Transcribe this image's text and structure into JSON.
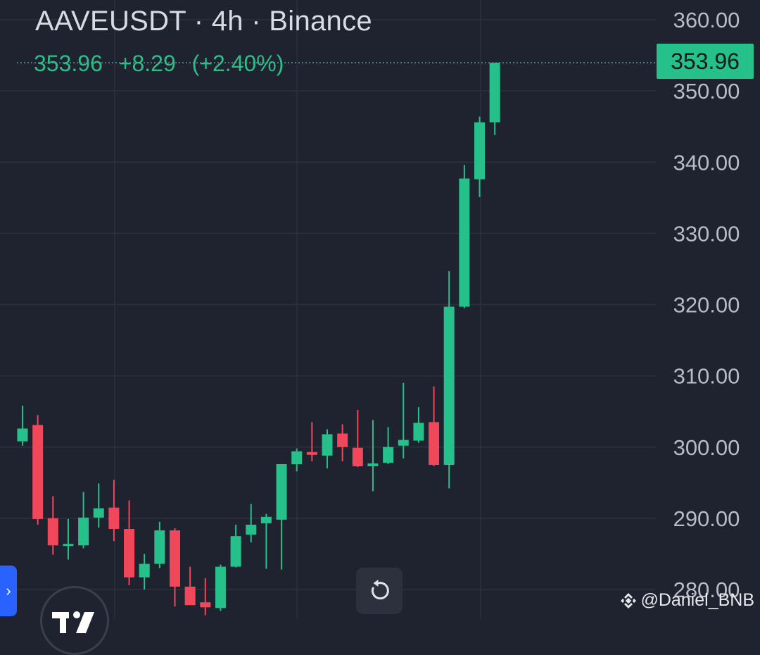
{
  "header": {
    "title": "AAVEUSDT · 4h · Binance",
    "last": "353.96",
    "change": "+8.29",
    "change_pct": "(+2.40%)"
  },
  "price_badge": "353.96",
  "watermark": "@Daniel_BNB",
  "colors": {
    "background": "#1f2330",
    "grid": "#2c313d",
    "up": "#26c08a",
    "down": "#f0475a",
    "axis_text": "#b8bcc6",
    "price_line": "#4aa6a0"
  },
  "icons": {
    "reset": "reset-icon",
    "expand": "chevron-right-icon",
    "watermark": "binance-icon"
  },
  "chart_data": {
    "type": "candlestick",
    "y_ticks": [
      "360.00",
      "350.00",
      "340.00",
      "330.00",
      "320.00",
      "310.00",
      "300.00",
      "290.00",
      "280.00"
    ],
    "ylim": [
      277.5,
      362.7
    ],
    "last_price": 353.96,
    "grid": true,
    "candles": [
      {
        "o": 300.8,
        "h": 305.8,
        "l": 300.2,
        "c": 302.6
      },
      {
        "o": 303.1,
        "h": 304.5,
        "l": 289.1,
        "c": 289.9
      },
      {
        "o": 290.0,
        "h": 293.1,
        "l": 284.9,
        "c": 286.2
      },
      {
        "o": 286.2,
        "h": 289.9,
        "l": 284.2,
        "c": 286.4
      },
      {
        "o": 286.2,
        "h": 293.7,
        "l": 285.8,
        "c": 290.1
      },
      {
        "o": 290.1,
        "h": 294.9,
        "l": 288.7,
        "c": 291.4
      },
      {
        "o": 291.5,
        "h": 295.4,
        "l": 286.8,
        "c": 288.5
      },
      {
        "o": 288.5,
        "h": 292.5,
        "l": 280.6,
        "c": 281.7
      },
      {
        "o": 281.7,
        "h": 285.0,
        "l": 280.0,
        "c": 283.6
      },
      {
        "o": 283.6,
        "h": 289.5,
        "l": 283.0,
        "c": 288.3
      },
      {
        "o": 288.3,
        "h": 288.6,
        "l": 277.6,
        "c": 280.4
      },
      {
        "o": 280.4,
        "h": 283.2,
        "l": 278.0,
        "c": 277.8
      },
      {
        "o": 278.2,
        "h": 281.6,
        "l": 276.4,
        "c": 277.5
      },
      {
        "o": 277.4,
        "h": 283.5,
        "l": 277.0,
        "c": 283.2
      },
      {
        "o": 283.2,
        "h": 289.1,
        "l": 283.1,
        "c": 287.5
      },
      {
        "o": 287.7,
        "h": 292.0,
        "l": 286.6,
        "c": 289.1
      },
      {
        "o": 289.3,
        "h": 290.6,
        "l": 282.9,
        "c": 290.2
      },
      {
        "o": 289.8,
        "h": 297.6,
        "l": 282.8,
        "c": 297.6
      },
      {
        "o": 297.6,
        "h": 299.8,
        "l": 296.6,
        "c": 299.4
      },
      {
        "o": 299.3,
        "h": 303.5,
        "l": 298.0,
        "c": 298.9
      },
      {
        "o": 298.8,
        "h": 302.5,
        "l": 297.0,
        "c": 301.8
      },
      {
        "o": 301.9,
        "h": 303.2,
        "l": 298.0,
        "c": 300.0
      },
      {
        "o": 299.9,
        "h": 305.2,
        "l": 297.2,
        "c": 297.3
      },
      {
        "o": 297.3,
        "h": 303.8,
        "l": 293.8,
        "c": 297.7
      },
      {
        "o": 297.8,
        "h": 302.8,
        "l": 297.6,
        "c": 300.0
      },
      {
        "o": 300.2,
        "h": 309.0,
        "l": 298.4,
        "c": 301.0
      },
      {
        "o": 300.9,
        "h": 305.6,
        "l": 300.6,
        "c": 303.4
      },
      {
        "o": 303.5,
        "h": 308.5,
        "l": 297.3,
        "c": 297.5
      },
      {
        "o": 297.5,
        "h": 324.7,
        "l": 294.2,
        "c": 319.7
      },
      {
        "o": 319.7,
        "h": 339.6,
        "l": 319.5,
        "c": 337.7
      },
      {
        "o": 337.6,
        "h": 346.4,
        "l": 335.1,
        "c": 345.6
      },
      {
        "o": 345.6,
        "h": 353.9,
        "l": 343.8,
        "c": 353.96
      }
    ]
  }
}
